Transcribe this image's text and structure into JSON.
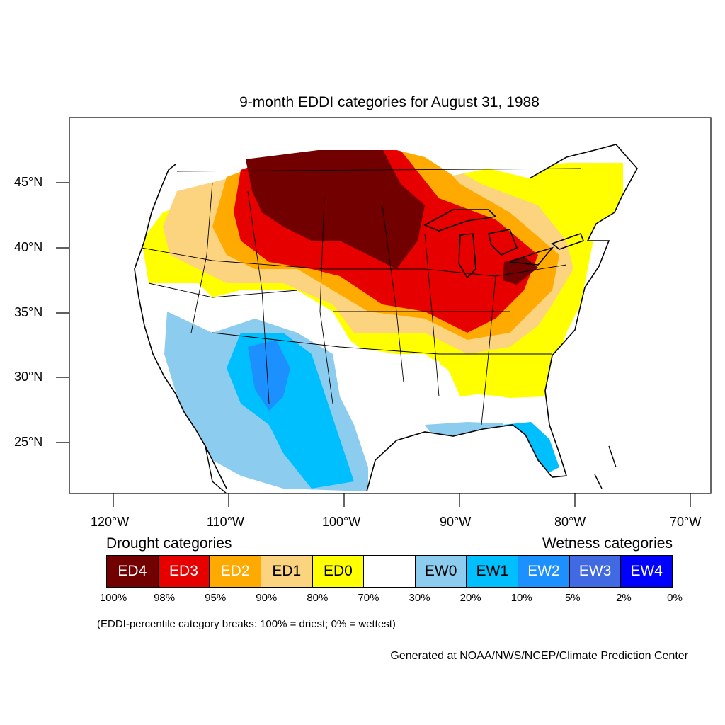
{
  "title": "9-month EDDI categories for August 31, 1988",
  "lat_labels": [
    "45°N",
    "40°N",
    "35°N",
    "30°N",
    "25°N"
  ],
  "lon_labels": [
    "120°W",
    "110°W",
    "100°W",
    "90°W",
    "80°W",
    "70°W"
  ],
  "legend": {
    "drought_heading": "Drought categories",
    "wetness_heading": "Wetness categories",
    "categories": [
      {
        "label": "ED4",
        "color": "#730000",
        "text_color": "#ffffff"
      },
      {
        "label": "ED3",
        "color": "#e60000",
        "text_color": "#ffffff"
      },
      {
        "label": "ED2",
        "color": "#ffaa00",
        "text_color": "#ffffff"
      },
      {
        "label": "ED1",
        "color": "#fcd37f",
        "text_color": "#000000"
      },
      {
        "label": "ED0",
        "color": "#ffff00",
        "text_color": "#000000"
      },
      {
        "label": "",
        "color": "#ffffff",
        "text_color": "#000000"
      },
      {
        "label": "EW0",
        "color": "#8ccdef",
        "text_color": "#000000"
      },
      {
        "label": "EW1",
        "color": "#00bfff",
        "text_color": "#000000"
      },
      {
        "label": "EW2",
        "color": "#1d90ff",
        "text_color": "#ffffff"
      },
      {
        "label": "EW3",
        "color": "#4169e1",
        "text_color": "#ffffff"
      },
      {
        "label": "EW4",
        "color": "#0000ff",
        "text_color": "#ffffff"
      }
    ],
    "breaks": [
      "100%",
      "98%",
      "95%",
      "90%",
      "80%",
      "70%",
      "30%",
      "20%",
      "10%",
      "5%",
      "2%",
      "0%"
    ]
  },
  "note": "(EDDI-percentile category breaks: 100% = driest; 0% = wettest)",
  "credit": "Generated at NOAA/NWS/NCEP/Climate Prediction Center"
}
